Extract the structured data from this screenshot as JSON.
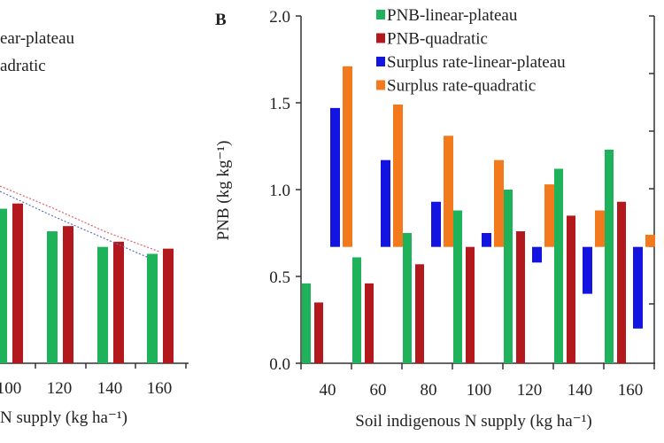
{
  "colors": {
    "pnb_linear_plateau": "#1eb35a",
    "pnb_quadratic": "#b3191c",
    "surplus_linear_plateau": "#1414e0",
    "surplus_quadratic": "#f27a1c",
    "axis": "#333333"
  },
  "chart_data": [
    {
      "panel": "A",
      "type": "bar",
      "partially_visible": true,
      "legend_fragments": [
        "ear-plateau",
        "adratic"
      ],
      "xlabel_fragment": "N supply (kg ha⁻¹)",
      "categories": [
        "100",
        "120",
        "140",
        "160"
      ],
      "series": [
        {
          "values": [
            0.89,
            0.76,
            0.67,
            0.63
          ]
        },
        {
          "values": [
            0.92,
            0.79,
            0.7,
            0.66
          ]
        }
      ],
      "trend_lines": "dotted, decreasing",
      "ylim": [
        0,
        2.0
      ],
      "grid": false
    },
    {
      "panel": "B",
      "panel_label": "B",
      "type": "bar",
      "xlabel": "Soil indigenous N supply (kg ha⁻¹)",
      "ylabel": "PNB (kg kg⁻¹)",
      "categories": [
        "40",
        "60",
        "80",
        "100",
        "120",
        "140",
        "160"
      ],
      "yticks": [
        "0.0",
        "0.5",
        "1.0",
        "1.5",
        "2.0"
      ],
      "ylim": [
        0,
        2.0
      ],
      "grid": false,
      "legend_position": "top",
      "surplus_bar_baseline": 0.67,
      "series": [
        {
          "name": "PNB-linear-plateau",
          "values": [
            0.46,
            0.61,
            0.75,
            0.88,
            1.0,
            1.12,
            1.23
          ]
        },
        {
          "name": "PNB-quadratic",
          "values": [
            0.35,
            0.46,
            0.57,
            0.67,
            0.76,
            0.85,
            0.93
          ]
        },
        {
          "name": "Surplus rate-linear-plateau",
          "values": [
            1.47,
            1.17,
            0.93,
            0.75,
            0.58,
            0.4,
            0.2
          ]
        },
        {
          "name": "Surplus rate-quadratic",
          "values": [
            1.71,
            1.49,
            1.31,
            1.17,
            1.03,
            0.88,
            0.74
          ]
        }
      ],
      "right_axis": "secondary axis, tick labels not visible"
    }
  ]
}
